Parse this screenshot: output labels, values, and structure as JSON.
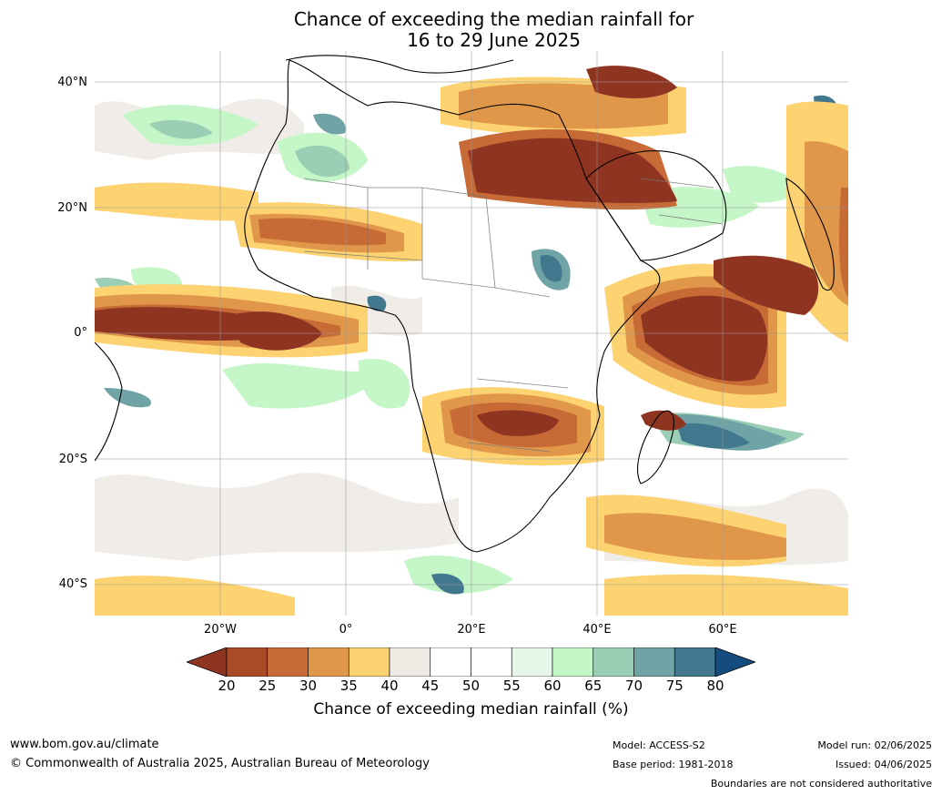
{
  "title_line1": "Chance of exceeding the median rainfall for",
  "title_line2": "16 to 29 June 2025",
  "lat_labels": [
    "40°N",
    "20°N",
    "0°",
    "20°S",
    "40°S"
  ],
  "lon_labels": [
    "20°W",
    "0°",
    "20°E",
    "40°E",
    "60°E"
  ],
  "colorbar": {
    "ticks": [
      "20",
      "25",
      "30",
      "35",
      "40",
      "45",
      "50",
      "55",
      "60",
      "65",
      "70",
      "75",
      "80"
    ],
    "colors": [
      "#8f3421",
      "#aa4a27",
      "#c76a36",
      "#e0974a",
      "#fdd372",
      "#eeebe5",
      "#ffffff",
      "#ffffff",
      "#e6f6e9",
      "#c4f6c7",
      "#9acfb5",
      "#6fa3a5",
      "#42788e",
      "#154c7f"
    ],
    "label": "Chance of exceeding median rainfall (%)"
  },
  "footer": {
    "url": "www.bom.gov.au/climate",
    "copyright": "© Commonwealth of Australia 2025, Australian Bureau of Meteorology",
    "model": "Model: ACCESS-S2",
    "base_period": "Base period: 1981-2018",
    "model_run": "Model run: 02/06/2025",
    "issued": "Issued: 04/06/2025",
    "disclaimer": "Boundaries are not considered authoritative"
  }
}
